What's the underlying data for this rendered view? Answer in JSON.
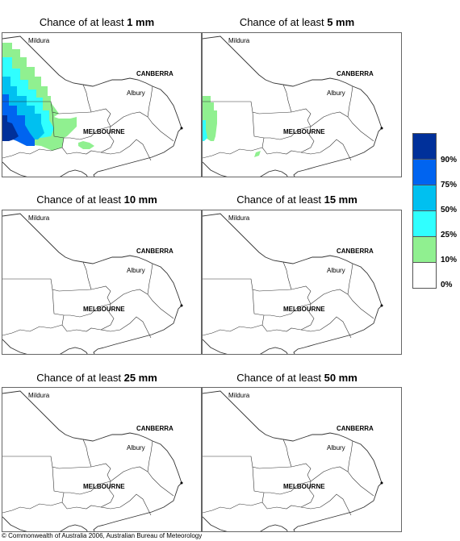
{
  "panels": [
    {
      "prefix": "Chance of at least ",
      "amount": "1 mm"
    },
    {
      "prefix": "Chance of at least ",
      "amount": "5 mm"
    },
    {
      "prefix": "Chance of at least ",
      "amount": "10 mm"
    },
    {
      "prefix": "Chance of at least ",
      "amount": "15 mm"
    },
    {
      "prefix": "Chance of at least ",
      "amount": "25 mm"
    },
    {
      "prefix": "Chance of at least ",
      "amount": "50 mm"
    }
  ],
  "places": {
    "mildura": "Mildura",
    "canberra": "CANBERRA",
    "albury": "Albury",
    "melbourne": "MELBOURNE"
  },
  "legend": {
    "labels": [
      "90%",
      "75%",
      "50%",
      "25%",
      "10%",
      "0%"
    ],
    "colors": [
      "#00309a",
      "#0064f0",
      "#00c0f0",
      "#30ffff",
      "#90f090",
      "#ffffff"
    ]
  },
  "copyright": "© Commonwealth of Australia 2006, Australian Bureau of Meteorology"
}
